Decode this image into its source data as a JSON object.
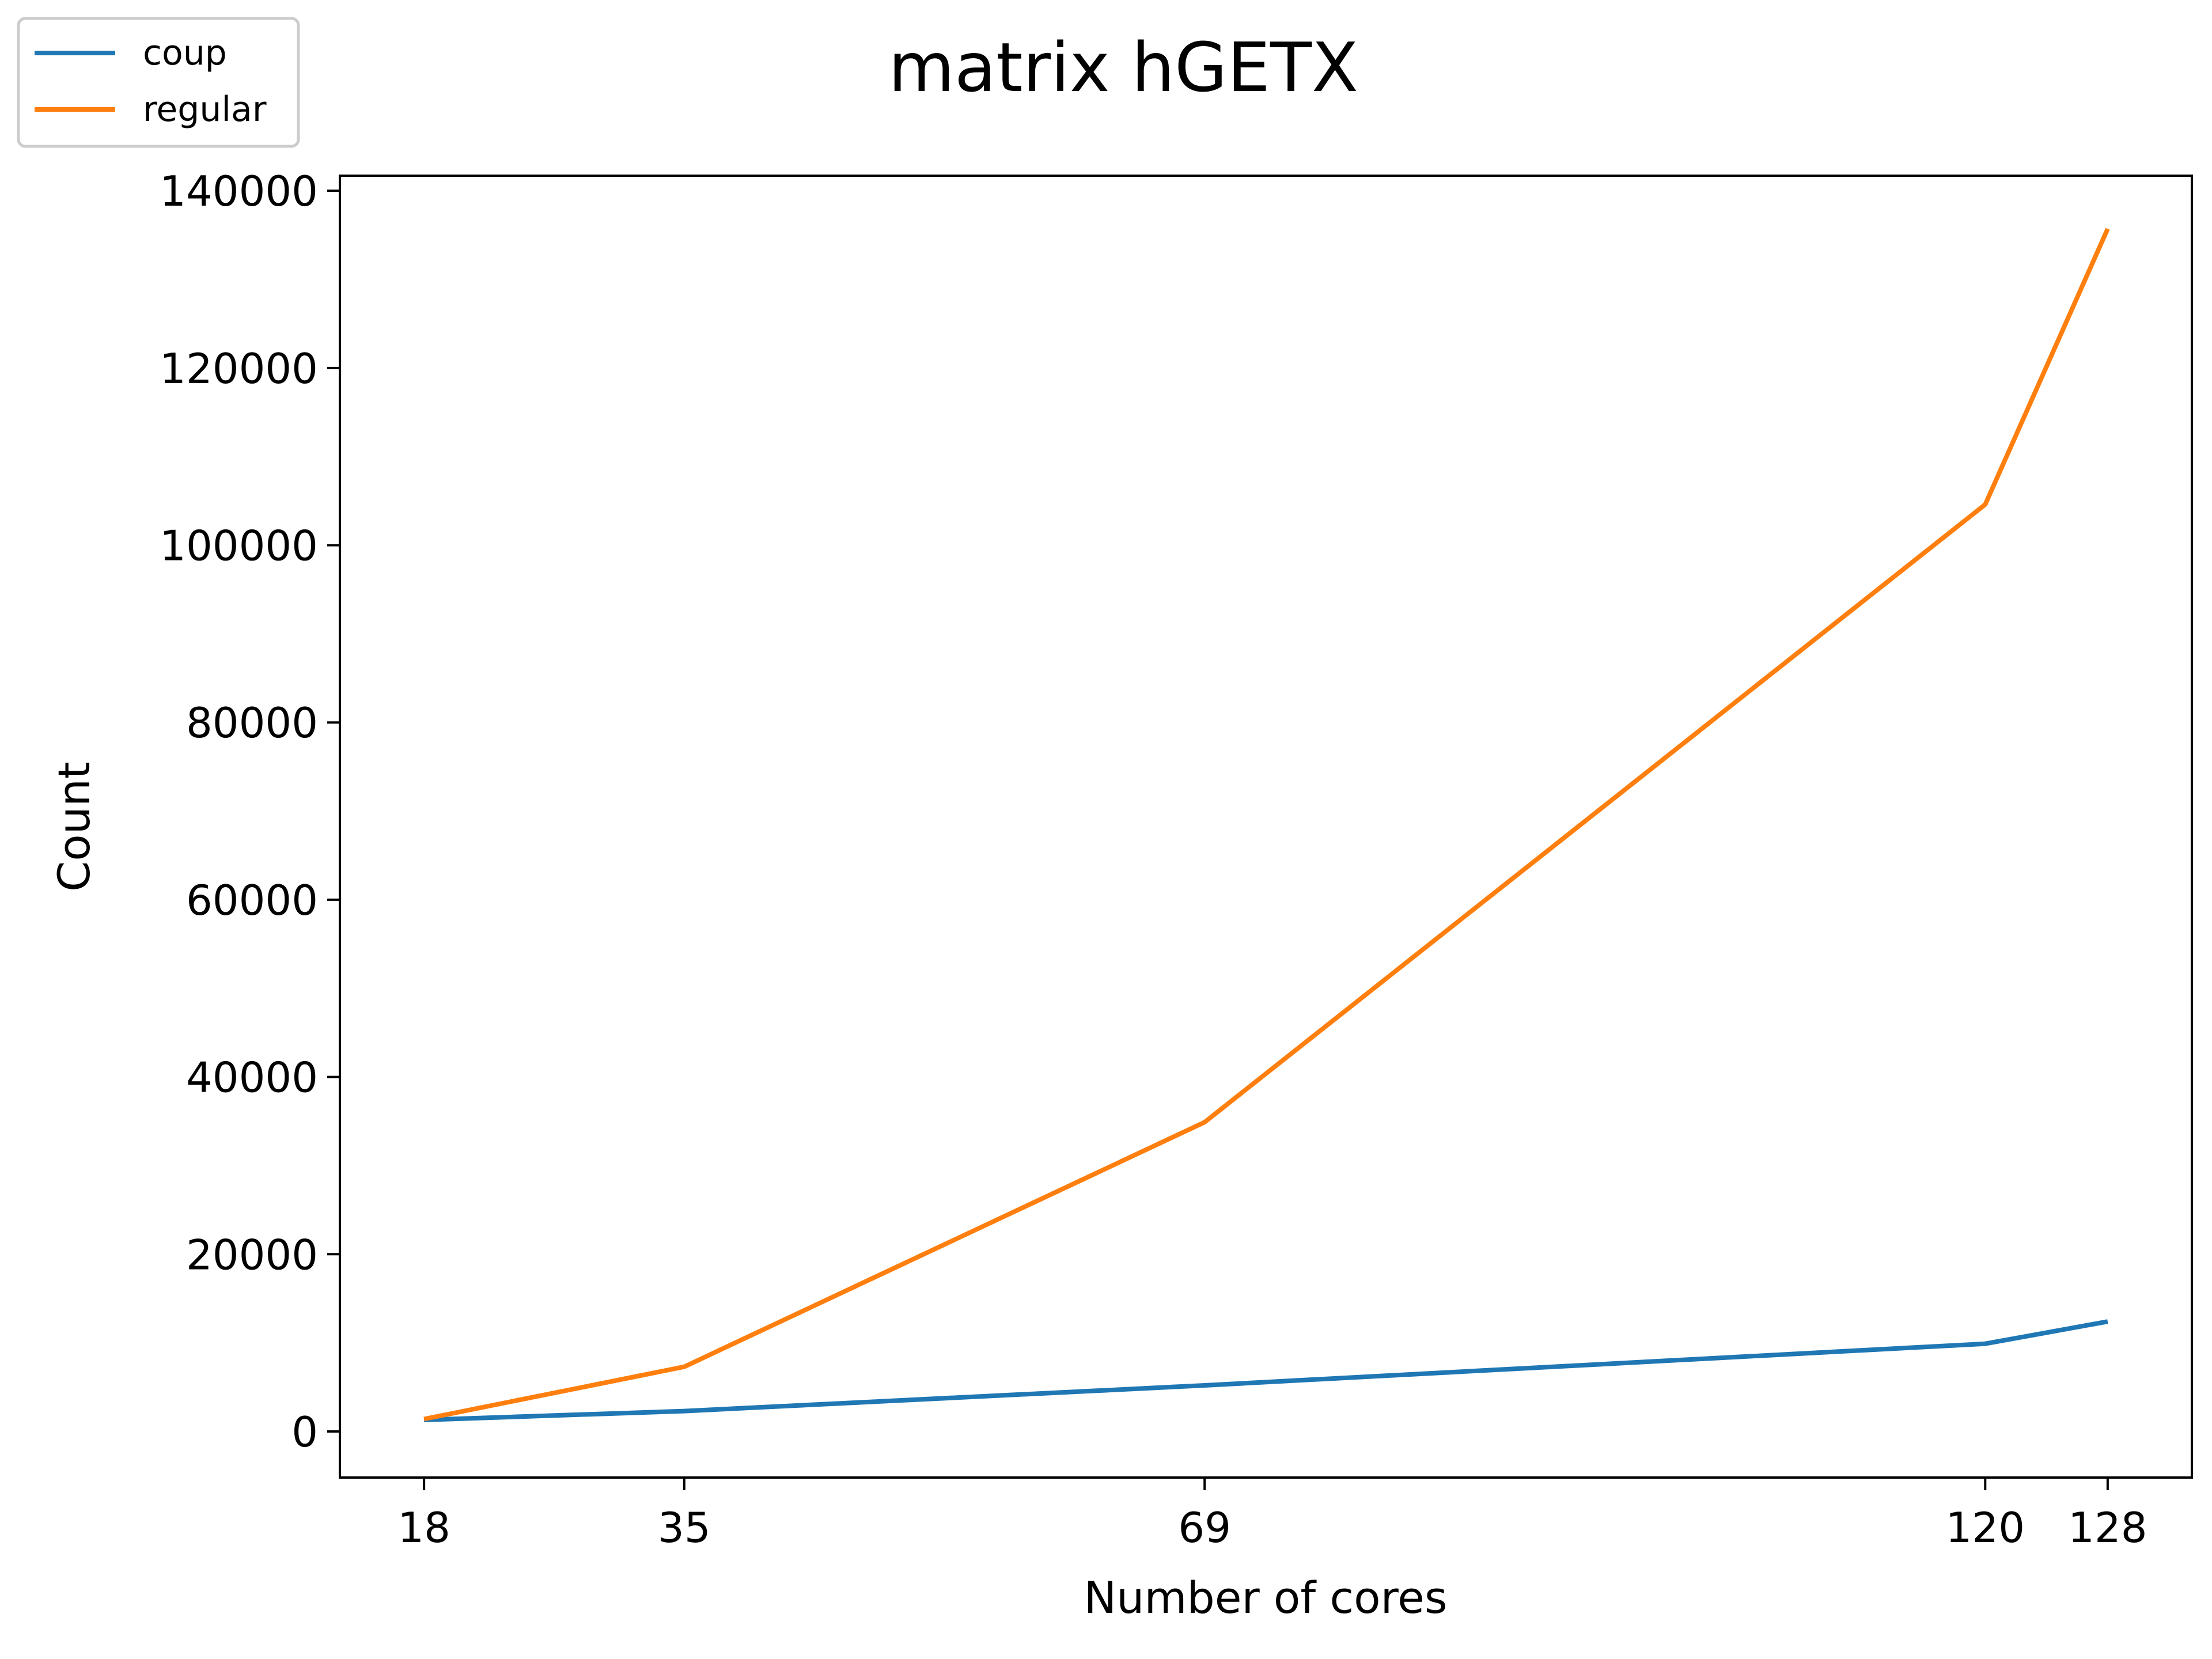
{
  "chart_data": {
    "type": "line",
    "title": "matrix hGETX",
    "xlabel": "Number of cores",
    "ylabel": "Count",
    "x": [
      18,
      35,
      69,
      120,
      128
    ],
    "xticks": [
      "18",
      "35",
      "69",
      "120",
      "128"
    ],
    "yticks": [
      "0",
      "20000",
      "40000",
      "60000",
      "80000",
      "100000",
      "120000",
      "140000"
    ],
    "xlim": [
      12.5,
      133.5
    ],
    "ylim": [
      -5200,
      141700
    ],
    "grid": false,
    "legend_position": "top-left",
    "series": [
      {
        "name": "coup",
        "color": "#1f77b4",
        "values": [
          1300,
          2300,
          5200,
          9900,
          12400
        ]
      },
      {
        "name": "regular",
        "color": "#ff7f0e",
        "values": [
          1400,
          7300,
          34900,
          104600,
          135700
        ]
      }
    ]
  }
}
